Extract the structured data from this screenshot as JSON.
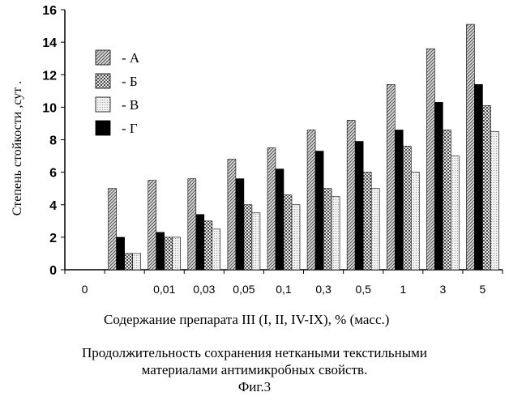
{
  "chart_data": {
    "type": "bar",
    "ylabel": "Степень стойкости ,сут .",
    "xlabel": "Содержание  препарата III (I, II, IV-IX), % (масс.)",
    "categories": [
      "0",
      "",
      "0,01",
      "0,03",
      "0,05",
      "0,1",
      "0,3",
      "0,5",
      "1",
      "3",
      "5"
    ],
    "ylim": [
      0,
      16
    ],
    "yticks": [
      0,
      2,
      4,
      6,
      8,
      10,
      12,
      14,
      16
    ],
    "legend_position": "top-left",
    "series": [
      {
        "name": "- А",
        "values": [
          0,
          5.0,
          5.5,
          5.6,
          6.8,
          7.5,
          8.6,
          9.2,
          11.4,
          13.6,
          15.1
        ]
      },
      {
        "name": "- Г",
        "values": [
          0,
          2.0,
          2.3,
          3.4,
          5.6,
          6.2,
          7.3,
          7.9,
          8.6,
          10.3,
          11.4
        ]
      },
      {
        "name": "- Б",
        "values": [
          0,
          1.0,
          2.0,
          3.0,
          4.0,
          4.6,
          5.0,
          6.0,
          7.6,
          8.6,
          10.1
        ]
      },
      {
        "name": "- В",
        "values": [
          0,
          1.0,
          2.0,
          2.5,
          3.5,
          4.0,
          4.5,
          5.0,
          6.0,
          7.0,
          8.5
        ]
      }
    ],
    "legend_order": [
      0,
      2,
      3,
      1
    ]
  },
  "caption": {
    "line1": "Продолжительность сохранения неткаными текстильными",
    "line2": "материалами антимикробных свойств.",
    "line3": "Фиг.3"
  }
}
